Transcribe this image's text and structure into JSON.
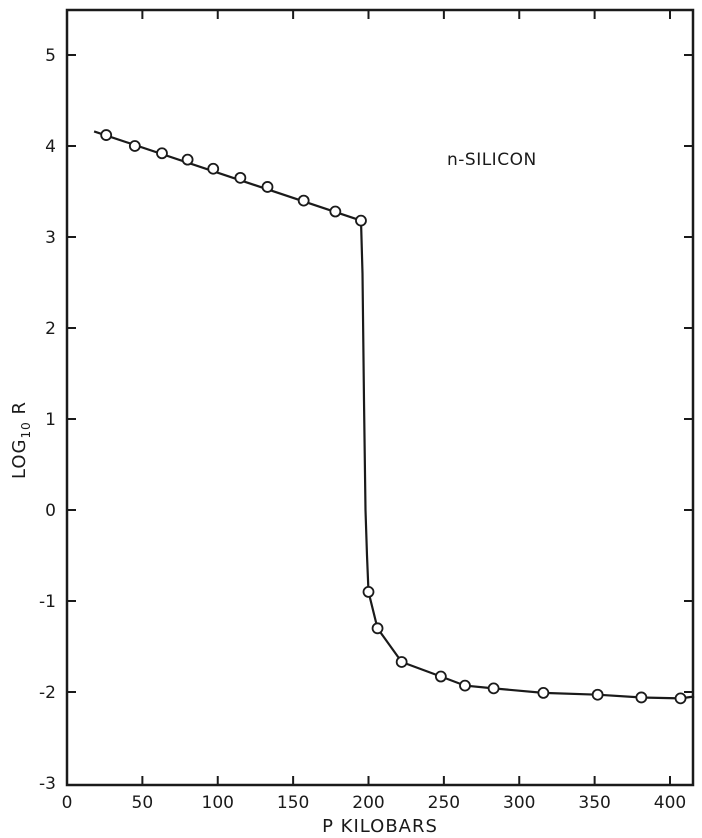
{
  "chart_data": {
    "type": "line",
    "xlabel": "P  KILOBARS",
    "ylabel_main": "LOG",
    "ylabel_sub": "10",
    "ylabel_tail": " R",
    "annotation": "n-SILICON",
    "xlim": [
      0,
      420
    ],
    "ylim": [
      -3,
      5.5
    ],
    "x_ticks": [
      0,
      50,
      100,
      150,
      200,
      250,
      300,
      350,
      400
    ],
    "x_tick_labels": [
      "0",
      "50",
      "100",
      "150",
      "200",
      "250",
      "300",
      "350",
      "400"
    ],
    "y_ticks": [
      5,
      4,
      3,
      2,
      1,
      0,
      -1,
      -2,
      -3
    ],
    "y_tick_labels": [
      "5",
      "4",
      "3",
      "2",
      "1",
      "0",
      "-1",
      "-2",
      "-3"
    ],
    "grid": false,
    "series": [
      {
        "markers": "open-circle",
        "points": [
          {
            "x": 26,
            "y": 4.12
          },
          {
            "x": 45,
            "y": 4.0
          },
          {
            "x": 63,
            "y": 3.92
          },
          {
            "x": 80,
            "y": 3.85
          },
          {
            "x": 97,
            "y": 3.75
          },
          {
            "x": 115,
            "y": 3.65
          },
          {
            "x": 133,
            "y": 3.55
          },
          {
            "x": 157,
            "y": 3.4
          },
          {
            "x": 178,
            "y": 3.28
          },
          {
            "x": 195,
            "y": 3.18
          },
          {
            "x": 200,
            "y": -0.9
          },
          {
            "x": 206,
            "y": -1.3
          },
          {
            "x": 222,
            "y": -1.67
          },
          {
            "x": 248,
            "y": -1.83
          },
          {
            "x": 264,
            "y": -1.93
          },
          {
            "x": 283,
            "y": -1.96
          },
          {
            "x": 316,
            "y": -2.01
          },
          {
            "x": 352,
            "y": -2.03
          },
          {
            "x": 381,
            "y": -2.06
          },
          {
            "x": 407,
            "y": -2.07
          }
        ],
        "curve": [
          {
            "x": 18,
            "y": 4.16
          },
          {
            "x": 195,
            "y": 3.18
          },
          {
            "x": 196,
            "y": 2.6
          },
          {
            "x": 197,
            "y": 1.2
          },
          {
            "x": 198,
            "y": 0.0
          },
          {
            "x": 199,
            "y": -0.5
          },
          {
            "x": 200,
            "y": -0.9
          },
          {
            "x": 206,
            "y": -1.3
          },
          {
            "x": 222,
            "y": -1.67
          },
          {
            "x": 248,
            "y": -1.83
          },
          {
            "x": 264,
            "y": -1.93
          },
          {
            "x": 283,
            "y": -1.96
          },
          {
            "x": 316,
            "y": -2.01
          },
          {
            "x": 352,
            "y": -2.03
          },
          {
            "x": 381,
            "y": -2.06
          },
          {
            "x": 407,
            "y": -2.07
          },
          {
            "x": 416,
            "y": -2.05
          }
        ]
      }
    ]
  }
}
